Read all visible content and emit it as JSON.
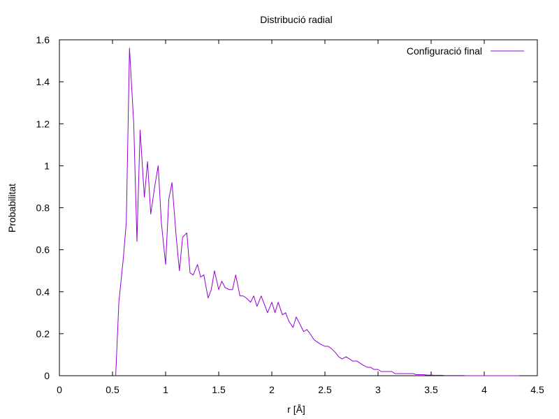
{
  "chart_data": {
    "type": "line",
    "title": "Distribució radial",
    "xlabel": "r [Å]",
    "ylabel": "Probabilitat",
    "xlim": [
      0,
      4.5
    ],
    "ylim": [
      0,
      1.6
    ],
    "x_ticks": [
      "0",
      "0.5",
      "1",
      "1.5",
      "2",
      "2.5",
      "3",
      "3.5",
      "4",
      "4.5"
    ],
    "y_ticks": [
      "0",
      "0.2",
      "0.4",
      "0.6",
      "0.8",
      "1",
      "1.2",
      "1.4",
      "1.6"
    ],
    "grid": false,
    "legend": "top-right",
    "series": [
      {
        "name": "Configuració final",
        "color": "#9400d3",
        "x": [
          0.53,
          0.56,
          0.6,
          0.63,
          0.66,
          0.7,
          0.73,
          0.76,
          0.8,
          0.83,
          0.86,
          0.9,
          0.93,
          0.96,
          1.0,
          1.03,
          1.06,
          1.1,
          1.13,
          1.16,
          1.2,
          1.23,
          1.26,
          1.3,
          1.33,
          1.36,
          1.4,
          1.43,
          1.46,
          1.5,
          1.53,
          1.56,
          1.6,
          1.63,
          1.66,
          1.7,
          1.73,
          1.76,
          1.8,
          1.83,
          1.86,
          1.9,
          1.93,
          1.96,
          2.0,
          2.03,
          2.06,
          2.1,
          2.13,
          2.16,
          2.2,
          2.23,
          2.26,
          2.3,
          2.33,
          2.36,
          2.4,
          2.43,
          2.46,
          2.5,
          2.53,
          2.56,
          2.6,
          2.63,
          2.66,
          2.7,
          2.73,
          2.76,
          2.8,
          2.83,
          2.86,
          2.9,
          2.93,
          2.96,
          3.0,
          3.03,
          3.06,
          3.1,
          3.13,
          3.16,
          3.2,
          3.23,
          3.26,
          3.3,
          3.33,
          3.36,
          3.4,
          3.43,
          3.46,
          3.5,
          3.53,
          3.56,
          3.6,
          3.63,
          3.66,
          3.7,
          3.73,
          3.76,
          3.8,
          3.83,
          3.86,
          3.9,
          3.93,
          3.96,
          4.0,
          4.03,
          4.06,
          4.1,
          4.13,
          4.16,
          4.2,
          4.23,
          4.26,
          4.3,
          4.33
        ],
        "y": [
          0.0,
          0.35,
          0.55,
          0.73,
          1.56,
          1.2,
          0.64,
          1.17,
          0.85,
          1.02,
          0.77,
          0.91,
          1.0,
          0.73,
          0.53,
          0.84,
          0.92,
          0.66,
          0.5,
          0.66,
          0.68,
          0.49,
          0.48,
          0.53,
          0.47,
          0.48,
          0.37,
          0.41,
          0.5,
          0.41,
          0.45,
          0.42,
          0.41,
          0.41,
          0.48,
          0.38,
          0.38,
          0.37,
          0.35,
          0.38,
          0.33,
          0.38,
          0.34,
          0.3,
          0.35,
          0.3,
          0.35,
          0.29,
          0.3,
          0.26,
          0.23,
          0.28,
          0.25,
          0.21,
          0.22,
          0.2,
          0.17,
          0.16,
          0.15,
          0.14,
          0.14,
          0.13,
          0.11,
          0.09,
          0.08,
          0.09,
          0.08,
          0.07,
          0.07,
          0.06,
          0.05,
          0.04,
          0.04,
          0.03,
          0.03,
          0.02,
          0.02,
          0.02,
          0.02,
          0.01,
          0.01,
          0.01,
          0.01,
          0.01,
          0.01,
          0.005,
          0.005,
          0.005,
          0.003,
          0.003,
          0.002,
          0.002,
          0.002,
          0.001,
          0.001,
          0.001,
          0.001,
          0.001,
          0.001,
          0.0,
          0.0,
          0.0,
          0.0,
          0.0,
          0.0,
          0.0,
          0.0,
          0.0,
          0.0,
          0.0,
          0.0,
          0.0,
          0.0,
          0.0,
          0.0
        ]
      }
    ]
  }
}
